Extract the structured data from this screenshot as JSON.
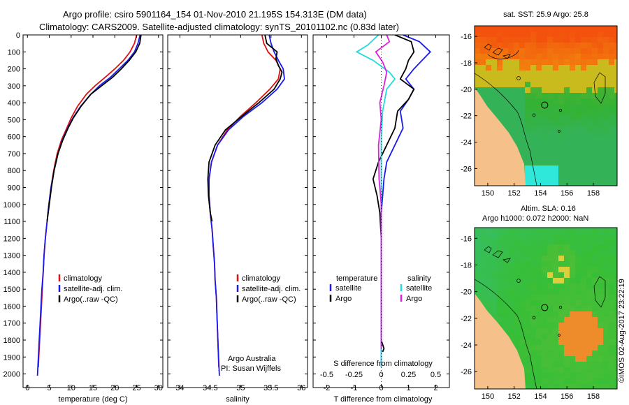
{
  "figure": {
    "title_line1": "Argo profile: csiro 5901164_154 01-Nov-2010 21.195S 154.313E (DM data)",
    "title_line2": "Climatology: CARS2009. Satellite-adjusted climatology: synTS_20101102.nc (0.83d later)",
    "credit": "Argo Australia",
    "pi": "PI: Susan Wijffels",
    "stamp": "©IMOS 02-Aug-2017 23:22:19"
  },
  "colors": {
    "clim": "#e01010",
    "sat": "#1a1aee",
    "argo": "#000000",
    "sal_sat": "#22dddd",
    "sal_argo": "#dd22dd",
    "land": "#f5c08a"
  },
  "chart_data": [
    {
      "type": "line",
      "id": "temperature",
      "xlabel": "temperature (deg C)",
      "ylabel": "",
      "xlim": [
        -1,
        31
      ],
      "ylim": [
        2080,
        0
      ],
      "xticks": [
        0,
        5,
        10,
        15,
        20,
        25,
        30
      ],
      "yticks": [
        0,
        100,
        200,
        300,
        400,
        500,
        600,
        700,
        800,
        900,
        1000,
        1100,
        1200,
        1300,
        1400,
        1500,
        1600,
        1700,
        1800,
        1900,
        2000
      ],
      "legend": [
        "climatology",
        "satellite-adj. clim.",
        "Argo(..raw -QC)"
      ],
      "series": [
        {
          "name": "climatology",
          "color": "#e01010",
          "points": [
            [
              25.0,
              0
            ],
            [
              24.5,
              50
            ],
            [
              23.5,
              100
            ],
            [
              22,
              150
            ],
            [
              20,
              200
            ],
            [
              17.8,
              250
            ],
            [
              15.5,
              300
            ],
            [
              13.5,
              350
            ],
            [
              11.5,
              420
            ],
            [
              10.0,
              490
            ],
            [
              9.0,
              550
            ],
            [
              7.8,
              620
            ],
            [
              6.8,
              700
            ],
            [
              6.0,
              800
            ],
            [
              5.4,
              900
            ],
            [
              4.9,
              1000
            ],
            [
              4.5,
              1100
            ],
            [
              4.1,
              1200
            ],
            [
              3.8,
              1300
            ],
            [
              3.6,
              1400
            ],
            [
              3.4,
              1500
            ],
            [
              3.2,
              1600
            ],
            [
              3.0,
              1700
            ],
            [
              2.8,
              1800
            ],
            [
              2.6,
              1900
            ],
            [
              2.5,
              1960
            ]
          ]
        },
        {
          "name": "satellite-adj. clim.",
          "color": "#1a1aee",
          "points": [
            [
              25.8,
              0
            ],
            [
              25.3,
              50
            ],
            [
              24.5,
              100
            ],
            [
              23,
              150
            ],
            [
              21,
              200
            ],
            [
              19,
              250
            ],
            [
              16.5,
              300
            ],
            [
              14.5,
              350
            ],
            [
              12.2,
              420
            ],
            [
              10.4,
              490
            ],
            [
              9.2,
              550
            ],
            [
              8.0,
              620
            ],
            [
              7.0,
              700
            ],
            [
              6.1,
              800
            ],
            [
              5.4,
              900
            ],
            [
              4.9,
              1000
            ],
            [
              4.5,
              1100
            ],
            [
              4.1,
              1200
            ],
            [
              3.8,
              1300
            ],
            [
              3.6,
              1400
            ],
            [
              3.3,
              1500
            ],
            [
              3.1,
              1600
            ],
            [
              2.9,
              1700
            ],
            [
              2.7,
              1800
            ],
            [
              2.5,
              1900
            ],
            [
              2.3,
              2010
            ]
          ]
        },
        {
          "name": "Argo(..raw -QC)",
          "color": "#000000",
          "points": [
            [
              26.0,
              0
            ],
            [
              25.7,
              50
            ],
            [
              24.8,
              100
            ],
            [
              23.3,
              150
            ],
            [
              21.5,
              200
            ],
            [
              19.5,
              250
            ],
            [
              17.0,
              300
            ],
            [
              14.5,
              350
            ],
            [
              12.3,
              420
            ],
            [
              10.5,
              490
            ],
            [
              9.3,
              550
            ],
            [
              8.1,
              620
            ],
            [
              7.0,
              700
            ],
            [
              6.1,
              800
            ],
            [
              5.5,
              900
            ],
            [
              5.0,
              1000
            ],
            [
              4.5,
              1100
            ]
          ]
        }
      ]
    },
    {
      "type": "line",
      "id": "salinity",
      "xlabel": "salinity",
      "xlim": [
        33.8,
        36.1
      ],
      "ylim": [
        2080,
        0
      ],
      "xticks": [
        34,
        34.5,
        35,
        35.5,
        36
      ],
      "legend": [
        "climatology",
        "satellite-adj. clim.",
        "Argo(..raw -QC)"
      ],
      "series": [
        {
          "name": "climatology",
          "color": "#e01010",
          "points": [
            [
              35.35,
              0
            ],
            [
              35.38,
              50
            ],
            [
              35.45,
              100
            ],
            [
              35.58,
              150
            ],
            [
              35.65,
              200
            ],
            [
              35.62,
              260
            ],
            [
              35.48,
              320
            ],
            [
              35.25,
              400
            ],
            [
              35.0,
              480
            ],
            [
              34.78,
              560
            ],
            [
              34.62,
              650
            ],
            [
              34.52,
              750
            ],
            [
              34.48,
              850
            ],
            [
              34.48,
              950
            ],
            [
              34.5,
              1050
            ],
            [
              34.53,
              1150
            ],
            [
              34.55,
              1250
            ],
            [
              34.57,
              1350
            ],
            [
              34.58,
              1450
            ],
            [
              34.6,
              1550
            ],
            [
              34.61,
              1650
            ],
            [
              34.62,
              1750
            ],
            [
              34.63,
              1850
            ],
            [
              34.64,
              1960
            ]
          ]
        },
        {
          "name": "satellite-adj. clim.",
          "color": "#1a1aee",
          "points": [
            [
              35.47,
              0
            ],
            [
              35.5,
              50
            ],
            [
              35.55,
              100
            ],
            [
              35.62,
              150
            ],
            [
              35.7,
              200
            ],
            [
              35.72,
              260
            ],
            [
              35.6,
              320
            ],
            [
              35.35,
              400
            ],
            [
              35.05,
              480
            ],
            [
              34.8,
              560
            ],
            [
              34.62,
              650
            ],
            [
              34.52,
              750
            ],
            [
              34.48,
              850
            ],
            [
              34.48,
              950
            ],
            [
              34.5,
              1050
            ],
            [
              34.53,
              1150
            ],
            [
              34.55,
              1250
            ],
            [
              34.57,
              1350
            ],
            [
              34.58,
              1450
            ],
            [
              34.6,
              1550
            ],
            [
              34.61,
              1650
            ],
            [
              34.62,
              1750
            ],
            [
              34.63,
              1850
            ],
            [
              34.65,
              2010
            ]
          ]
        },
        {
          "name": "Argo(..raw -QC)",
          "color": "#000000",
          "points": [
            [
              35.4,
              0
            ],
            [
              35.43,
              50
            ],
            [
              35.6,
              100
            ],
            [
              35.58,
              140
            ],
            [
              35.62,
              180
            ],
            [
              35.68,
              220
            ],
            [
              35.65,
              260
            ],
            [
              35.55,
              320
            ],
            [
              35.3,
              400
            ],
            [
              35.02,
              480
            ],
            [
              34.75,
              560
            ],
            [
              34.58,
              650
            ],
            [
              34.48,
              750
            ],
            [
              34.46,
              850
            ],
            [
              34.47,
              950
            ],
            [
              34.5,
              1050
            ],
            [
              34.53,
              1100
            ]
          ]
        }
      ]
    },
    {
      "type": "line",
      "id": "difference",
      "xlabel": "T difference from climatology",
      "xlabel_top": "S difference from climatology",
      "xlim": [
        -2.5,
        2.5
      ],
      "ylim": [
        2080,
        0
      ],
      "xticks_bottom": [
        -2,
        -1,
        0,
        1,
        2
      ],
      "xtick_labels_top": [
        "-0.5",
        "-0.25",
        "0",
        "0.25",
        "0.5"
      ],
      "xticks_top": [
        -2,
        -1,
        0,
        1,
        2
      ],
      "legend_left": {
        "title": "temperature",
        "items": [
          "satellite",
          "Argo"
        ]
      },
      "legend_right": {
        "title": "salinity",
        "items": [
          "satellite",
          "Argo"
        ]
      },
      "series": [
        {
          "name": "temperature satellite",
          "color": "#1a1aee",
          "points": [
            [
              0.8,
              0
            ],
            [
              1.4,
              40
            ],
            [
              1.8,
              100
            ],
            [
              1.5,
              150
            ],
            [
              1.2,
              200
            ],
            [
              0.9,
              260
            ],
            [
              1.2,
              320
            ],
            [
              1.0,
              380
            ],
            [
              0.7,
              450
            ],
            [
              0.8,
              550
            ],
            [
              0.5,
              650
            ],
            [
              0.2,
              750
            ],
            [
              0.1,
              850
            ],
            [
              0.05,
              950
            ],
            [
              0,
              1050
            ],
            [
              0,
              1200
            ],
            [
              0,
              1400
            ],
            [
              0,
              1600
            ],
            [
              0,
              1800
            ],
            [
              0,
              1960
            ]
          ]
        },
        {
          "name": "temperature Argo",
          "color": "#000000",
          "points": [
            [
              0.5,
              0
            ],
            [
              1.1,
              40
            ],
            [
              1.2,
              100
            ],
            [
              1.0,
              150
            ],
            [
              0.9,
              200
            ],
            [
              0.7,
              260
            ],
            [
              1.2,
              320
            ],
            [
              1.0,
              380
            ],
            [
              0.6,
              450
            ],
            [
              0.5,
              550
            ],
            [
              0.2,
              650
            ],
            [
              -0.1,
              750
            ],
            [
              -0.3,
              850
            ],
            [
              -0.15,
              950
            ],
            [
              -0.05,
              1050
            ],
            [
              0,
              1200
            ],
            [
              0,
              1400
            ],
            [
              0,
              1600
            ],
            [
              0,
              1800
            ],
            [
              0.1,
              1850
            ],
            [
              0.05,
              1870
            ]
          ]
        },
        {
          "name": "salinity satellite",
          "color": "#22dddd",
          "points": [
            [
              -0.1,
              0
            ],
            [
              -0.5,
              60
            ],
            [
              -0.9,
              100
            ],
            [
              -0.3,
              150
            ],
            [
              0.3,
              220
            ],
            [
              0.5,
              260
            ],
            [
              0.2,
              320
            ],
            [
              0.05,
              450
            ],
            [
              0,
              600
            ],
            [
              0,
              800
            ],
            [
              0,
              1000
            ],
            [
              0,
              1200
            ],
            [
              0,
              1500
            ],
            [
              0,
              1800
            ],
            [
              0,
              1960
            ]
          ]
        },
        {
          "name": "salinity Argo",
          "color": "#dd22dd",
          "points": [
            [
              0.2,
              0
            ],
            [
              0.3,
              40
            ],
            [
              -0.2,
              100
            ],
            [
              0.05,
              160
            ],
            [
              0.2,
              220
            ],
            [
              0.1,
              300
            ],
            [
              -0.05,
              400
            ],
            [
              0,
              500
            ],
            [
              -0.1,
              650
            ],
            [
              -0.08,
              850
            ],
            [
              0,
              1000
            ],
            [
              0,
              1200
            ],
            [
              0,
              1400
            ],
            [
              0,
              1600
            ],
            [
              0,
              1850
            ]
          ]
        }
      ]
    },
    {
      "type": "heatmap",
      "id": "sst-map",
      "title": "sat. SST: 25.9 Argo: 25.8",
      "xticks": [
        150,
        152,
        154,
        156,
        158
      ],
      "yticks": [
        -16,
        -18,
        -20,
        -22,
        -24,
        -26
      ],
      "xlim": [
        149,
        159.8
      ],
      "ylim": [
        -27.3,
        -15.2
      ],
      "argo_position": [
        154.313,
        -21.195
      ]
    },
    {
      "type": "heatmap",
      "id": "sla-map",
      "title_line1": "Altim. SLA: 0.16",
      "title_line2": "Argo h1000: 0.072 h2000: NaN",
      "xticks": [
        150,
        152,
        154,
        156,
        158
      ],
      "yticks": [
        -16,
        -18,
        -20,
        -22,
        -24,
        -26
      ],
      "xlim": [
        149,
        159.8
      ],
      "ylim": [
        -27.3,
        -15.2
      ],
      "argo_position": [
        154.313,
        -21.195
      ]
    }
  ]
}
